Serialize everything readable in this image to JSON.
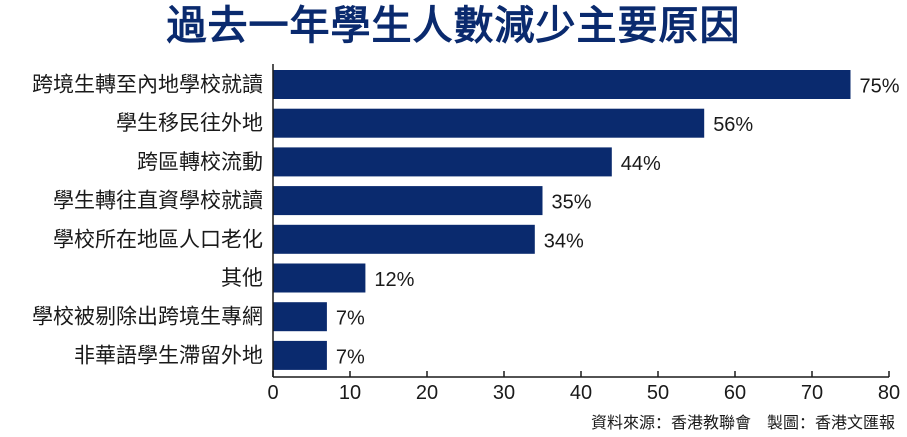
{
  "chart_data": {
    "type": "bar",
    "orientation": "horizontal",
    "title": "過去一年學生人數減少主要原因",
    "categories": [
      "跨境生轉至內地學校就讀",
      "學生移民往外地",
      "跨區轉校流動",
      "學生轉往直資學校就讀",
      "學校所在地區人口老化",
      "其他",
      "學校被剔除出跨境生專網",
      "非華語學生滯留外地"
    ],
    "values": [
      75,
      56,
      44,
      35,
      34,
      12,
      7,
      7
    ],
    "value_labels": [
      "75%",
      "56%",
      "44%",
      "35%",
      "34%",
      "12%",
      "7%",
      "7%"
    ],
    "xlim": [
      0,
      80
    ],
    "xticks": [
      0,
      10,
      20,
      30,
      40,
      50,
      60,
      70,
      80
    ],
    "xlabel": "",
    "ylabel": "",
    "grid": false,
    "bar_color": "#0a2a6e"
  },
  "source": "資料來源：香港教聯會　製圖：香港文匯報"
}
